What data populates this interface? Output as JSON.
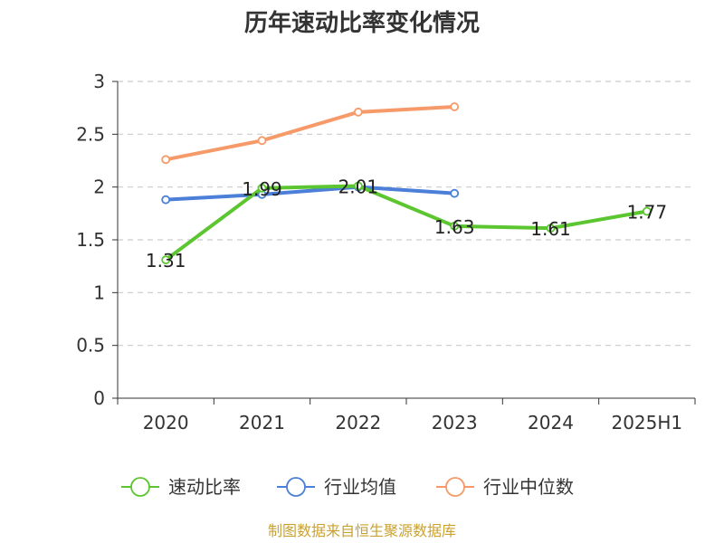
{
  "chart_data": {
    "type": "line",
    "title": "历年速动比率变化情况",
    "categories": [
      "2020",
      "2021",
      "2022",
      "2023",
      "2024",
      "2025H1"
    ],
    "y_ticks": [
      "0",
      "0.5",
      "1",
      "1.5",
      "2",
      "2.5",
      "3"
    ],
    "ylim": [
      0,
      3
    ],
    "grid": true,
    "legend_position": "bottom",
    "series": [
      {
        "name": "速动比率",
        "color": "#5cc630",
        "values": [
          1.31,
          1.99,
          2.01,
          1.63,
          1.61,
          1.77
        ],
        "labels": [
          "1.31",
          "1.99",
          "2.01",
          "1.63",
          "1.61",
          "1.77"
        ]
      },
      {
        "name": "行业均值",
        "color": "#4b7fd8",
        "values": [
          1.88,
          1.93,
          2.0,
          1.94,
          null,
          null
        ]
      },
      {
        "name": "行业中位数",
        "color": "#f59a68",
        "values": [
          2.26,
          2.44,
          2.71,
          2.76,
          null,
          null
        ]
      }
    ]
  },
  "footer": {
    "source": "制图数据来自恒生聚源数据库"
  }
}
